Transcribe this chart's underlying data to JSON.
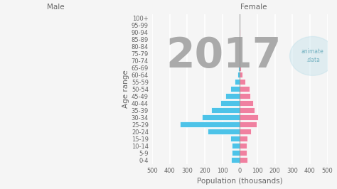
{
  "title": "2017",
  "xlabel": "Population (thousands)",
  "ylabel": "Age range",
  "male_label": "Male",
  "female_label": "Female",
  "age_groups": [
    "0-4",
    "5-9",
    "10-14",
    "15-19",
    "20-24",
    "25-29",
    "30-34",
    "35-39",
    "40-44",
    "45-49",
    "50-54",
    "55-59",
    "60-64",
    "65-69",
    "70-74",
    "75-79",
    "80-84",
    "85-89",
    "90-94",
    "95-99",
    "100+"
  ],
  "male_values": [
    50,
    45,
    45,
    55,
    185,
    340,
    215,
    165,
    110,
    80,
    55,
    30,
    15,
    8,
    6,
    4,
    3,
    2,
    1.5,
    1,
    0.5
  ],
  "female_values": [
    45,
    40,
    40,
    45,
    65,
    95,
    105,
    85,
    75,
    60,
    55,
    30,
    15,
    8,
    6,
    4,
    3,
    2,
    1.5,
    1,
    0.5
  ],
  "male_color": "#4DC3E8",
  "female_color": "#F080A0",
  "background_color": "#f5f5f5",
  "grid_color": "#ffffff",
  "text_color": "#666666",
  "xlim": 500,
  "bar_height": 0.82,
  "title_fontsize": 42,
  "label_fontsize": 6,
  "axis_label_fontsize": 7.5,
  "watermark_text": "animate\n.data",
  "watermark_color": "#b8dde8"
}
